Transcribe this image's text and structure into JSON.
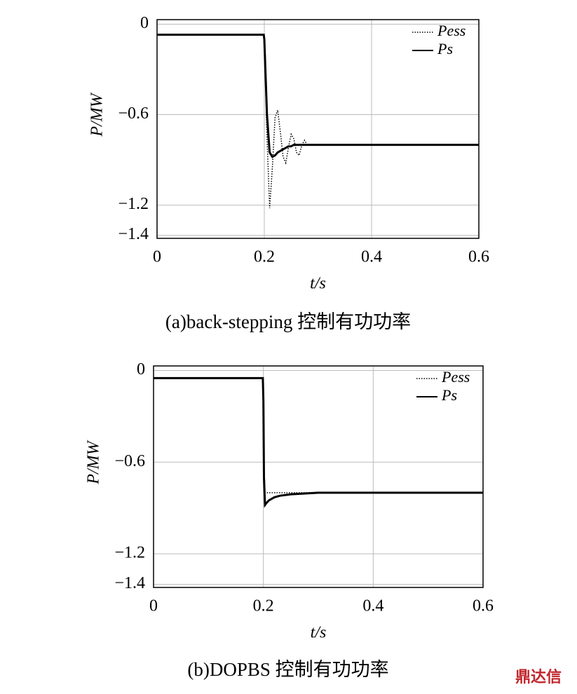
{
  "chart_data": [
    {
      "type": "line",
      "caption": "(a)back-stepping 控制有功功率",
      "xlabel": "t/s",
      "ylabel": "P/MW",
      "x": [
        0,
        0.1,
        0.199,
        0.2,
        0.205,
        0.21,
        0.215,
        0.22,
        0.225,
        0.23,
        0.235,
        0.24,
        0.245,
        0.25,
        0.255,
        0.26,
        0.265,
        0.27,
        0.275,
        0.28,
        0.3,
        0.4,
        0.5,
        0.6
      ],
      "series": [
        {
          "name": "Pess",
          "color": "#000",
          "dash": "dotted",
          "values": [
            -0.07,
            -0.07,
            -0.07,
            -0.1,
            -0.75,
            -1.22,
            -0.95,
            -0.62,
            -0.57,
            -0.72,
            -0.88,
            -0.92,
            -0.82,
            -0.73,
            -0.76,
            -0.85,
            -0.87,
            -0.8,
            -0.77,
            -0.8,
            -0.8,
            -0.8,
            -0.8,
            -0.8
          ]
        },
        {
          "name": "Ps",
          "color": "#000",
          "dash": "solid",
          "values": [
            -0.07,
            -0.07,
            -0.07,
            -0.1,
            -0.6,
            -0.85,
            -0.88,
            -0.87,
            -0.85,
            -0.84,
            -0.83,
            -0.82,
            -0.81,
            -0.81,
            -0.8,
            -0.8,
            -0.8,
            -0.8,
            -0.8,
            -0.8,
            -0.8,
            -0.8,
            -0.8,
            -0.8
          ]
        }
      ],
      "xlim": [
        0,
        0.6
      ],
      "xticks": [
        0,
        0.2,
        0.4,
        0.6
      ],
      "ylim": [
        -1.42,
        0.03
      ],
      "yticks": [
        0,
        {
          "value": -0.6,
          "label": "−0.6"
        },
        {
          "value": -1.2,
          "label": "−1.2"
        },
        {
          "value": -1.4,
          "label": "−1.4"
        }
      ],
      "grid": true,
      "legend": "upper right"
    },
    {
      "type": "line",
      "caption": "(b)DOPBS 控制有功功率",
      "xlabel": "t/s",
      "ylabel": "P/MW",
      "x": [
        0,
        0.1,
        0.199,
        0.2,
        0.201,
        0.203,
        0.205,
        0.21,
        0.22,
        0.23,
        0.25,
        0.3,
        0.4,
        0.5,
        0.6
      ],
      "series": [
        {
          "name": "Pess",
          "color": "#000",
          "dash": "dotted",
          "values": [
            -0.05,
            -0.05,
            -0.05,
            -0.3,
            -0.6,
            -0.8,
            -0.8,
            -0.8,
            -0.8,
            -0.8,
            -0.8,
            -0.8,
            -0.8,
            -0.8,
            -0.8
          ]
        },
        {
          "name": "Ps",
          "color": "#000",
          "dash": "solid",
          "values": [
            -0.05,
            -0.05,
            -0.05,
            -0.2,
            -0.7,
            -0.88,
            -0.87,
            -0.85,
            -0.83,
            -0.82,
            -0.81,
            -0.8,
            -0.8,
            -0.8,
            -0.8
          ]
        }
      ],
      "xlim": [
        0,
        0.6
      ],
      "xticks": [
        0,
        0.2,
        0.4,
        0.6
      ],
      "ylim": [
        -1.42,
        0.03
      ],
      "yticks": [
        0,
        {
          "value": -0.6,
          "label": "−0.6"
        },
        {
          "value": -1.2,
          "label": "−1.2"
        },
        {
          "value": -1.4,
          "label": "−1.4"
        }
      ],
      "grid": true,
      "legend": "upper right"
    }
  ],
  "watermark": "鼎达信"
}
